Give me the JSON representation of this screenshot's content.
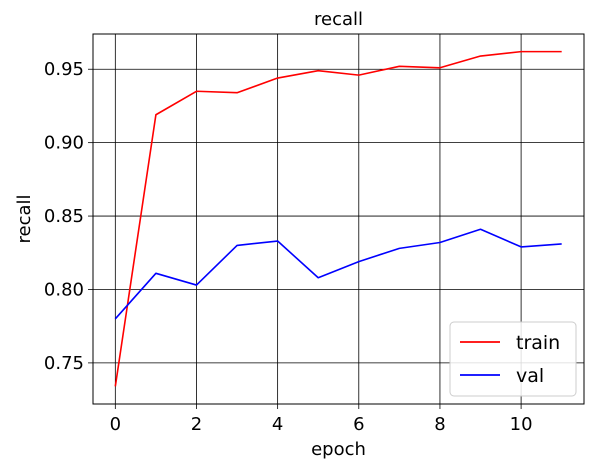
{
  "chart_data": {
    "type": "line",
    "title": "recall",
    "xlabel": "epoch",
    "ylabel": "recall",
    "xlim": [
      -0.55,
      11.55
    ],
    "ylim": [
      0.722,
      0.974
    ],
    "xticks": [
      0,
      2,
      4,
      6,
      8,
      10
    ],
    "xtick_labels": [
      "0",
      "2",
      "4",
      "6",
      "8",
      "10"
    ],
    "yticks": [
      0.75,
      0.8,
      0.85,
      0.9,
      0.95
    ],
    "ytick_labels": [
      "0.75",
      "0.80",
      "0.85",
      "0.90",
      "0.95"
    ],
    "grid": true,
    "legend_position": "lower-right",
    "x": [
      0,
      1,
      2,
      3,
      4,
      5,
      6,
      7,
      8,
      9,
      10,
      11
    ],
    "series": [
      {
        "name": "train",
        "color": "#ff0000",
        "values": [
          0.734,
          0.919,
          0.935,
          0.934,
          0.944,
          0.949,
          0.946,
          0.952,
          0.951,
          0.959,
          0.962,
          0.962
        ]
      },
      {
        "name": "val",
        "color": "#0000ff",
        "values": [
          0.78,
          0.811,
          0.803,
          0.83,
          0.833,
          0.808,
          0.819,
          0.828,
          0.832,
          0.841,
          0.829,
          0.831
        ]
      }
    ]
  }
}
